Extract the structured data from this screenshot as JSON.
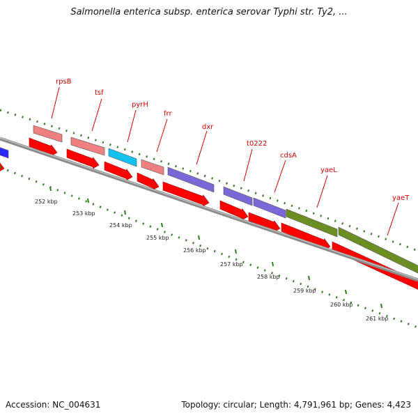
{
  "header": {
    "title": "Salmonella enterica subsp. enterica serovar Typhi str. Ty2, ..."
  },
  "footer": {
    "accession": "Accession: NC_004631",
    "summary": "Topology: circular; Length: 4,791,961 bp; Genes: 4,423"
  },
  "legend_colors": {
    "backbone": "#8c8c8c",
    "cds": "#ff0000",
    "gene_label": "#d40000",
    "dots": "#2e7d1e"
  },
  "scale_ticks": [
    "252 kbp",
    "253 kbp",
    "254 kbp",
    "255 kbp",
    "256 kbp",
    "257 kbp",
    "258 kbp",
    "259 kbp",
    "260 kbp",
    "261 kbp"
  ],
  "genes": [
    {
      "name": "",
      "color": "#2a2aff"
    },
    {
      "name": "rpsB",
      "color": "#f08080"
    },
    {
      "name": "tsf",
      "color": "#f08080"
    },
    {
      "name": "pyrH",
      "color": "#11c3ee"
    },
    {
      "name": "frr",
      "color": "#f08080"
    },
    {
      "name": "dxr",
      "color": "#7b68d8"
    },
    {
      "name": "t0222",
      "color": "#7b68d8"
    },
    {
      "name": "cdsA",
      "color": "#7b68d8"
    },
    {
      "name": "yaeL",
      "color": "#6b8e23"
    },
    {
      "name": "yaeT",
      "color": "#6b8e23"
    }
  ]
}
